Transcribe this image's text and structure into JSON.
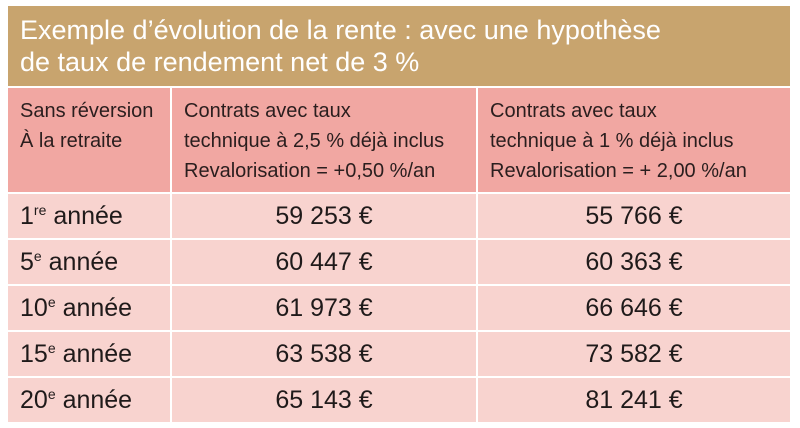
{
  "title": {
    "line1": "Exemple d’évolution de la rente : avec une hypothèse",
    "line2": "de taux de rendement net de 3 %"
  },
  "header": {
    "col1": [
      "Sans réversion",
      "À la retraite"
    ],
    "col2": [
      "Contrats avec taux",
      "technique à 2,5 % déjà inclus",
      "Revalorisation = +0,50 %/an"
    ],
    "col3": [
      "Contrats avec taux",
      "technique à 1 % déjà inclus",
      "Revalorisation = + 2,00 %/an"
    ]
  },
  "rows": [
    {
      "num": "1",
      "sup": "re",
      "suffix": "année",
      "v1": "59 253 €",
      "v2": "55 766 €"
    },
    {
      "num": "5",
      "sup": "e",
      "suffix": "année",
      "v1": "60 447 €",
      "v2": "60 363 €"
    },
    {
      "num": "10",
      "sup": "e",
      "suffix": "année",
      "v1": "61 973 €",
      "v2": "66 646 €"
    },
    {
      "num": "15",
      "sup": "e",
      "suffix": "année",
      "v1": "63 538 €",
      "v2": "73 582 €"
    },
    {
      "num": "20",
      "sup": "e",
      "suffix": "année",
      "v1": "65 143 €",
      "v2": "81 241 €"
    }
  ],
  "colors": {
    "title_bg": "#c8a46e",
    "header_bg": "#f1a7a2",
    "row_bg": "#f8d3cf"
  }
}
